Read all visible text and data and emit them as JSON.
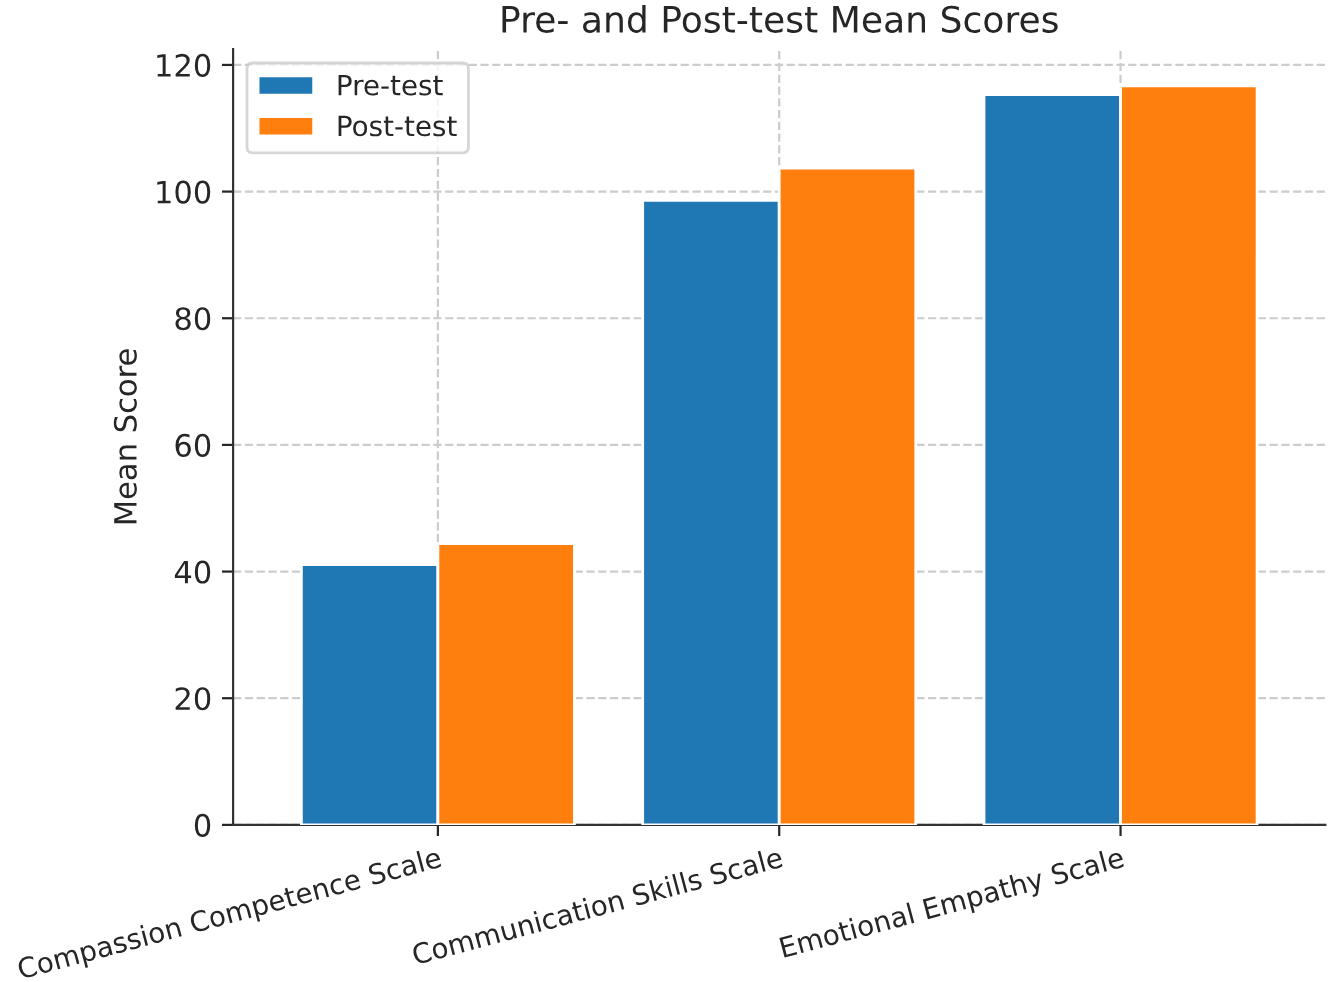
{
  "chart_data": {
    "type": "bar",
    "title": "Pre- and Post-test Mean Scores",
    "ylabel": "Mean Score",
    "categories": [
      "Compassion Competence Scale",
      "Communication Skills Scale",
      "Emotional Empathy Scale"
    ],
    "series": [
      {
        "name": "Pre-test",
        "color": "#1f77b4",
        "values": [
          41.1,
          98.6,
          115.3
        ]
      },
      {
        "name": "Post-test",
        "color": "#ff7f0e",
        "values": [
          44.4,
          103.7,
          116.7
        ]
      }
    ],
    "ylim": [
      0,
      122.5
    ],
    "yticks": [
      0,
      20,
      40,
      60,
      80,
      100,
      120
    ],
    "grid": true,
    "legend": "top left"
  }
}
